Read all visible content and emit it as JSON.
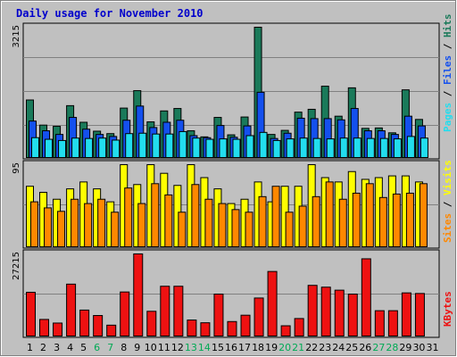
{
  "chart_data": {
    "type": "bar",
    "title": "Daily usage for November 2010",
    "days": [
      "1",
      "2",
      "3",
      "4",
      "5",
      "6",
      "7",
      "8",
      "9",
      "10",
      "11",
      "12",
      "13",
      "14",
      "15",
      "16",
      "17",
      "18",
      "19",
      "20",
      "21",
      "22",
      "23",
      "24",
      "25",
      "26",
      "27",
      "28",
      "29",
      "30",
      "31"
    ],
    "weekend_days": [
      "6",
      "7",
      "13",
      "14",
      "20",
      "21",
      "27",
      "28"
    ],
    "panels": [
      {
        "name": "top",
        "max_label": "3215",
        "max": 3215,
        "axis_labels": [
          "Pages",
          "Files",
          "Hits"
        ],
        "series": [
          {
            "name": "Hits",
            "color": "#1a7a5a",
            "values": [
              1420,
              800,
              770,
              1280,
              870,
              650,
              590,
              1220,
              1650,
              880,
              1150,
              1210,
              660,
              510,
              990,
              560,
              1000,
              3215,
              570,
              670,
              1120,
              1190,
              1760,
              1020,
              1720,
              720,
              730,
              610,
              1670,
              940,
              0
            ]
          },
          {
            "name": "Files",
            "color": "#1450ee",
            "values": [
              900,
              660,
              570,
              990,
              700,
              570,
              520,
              920,
              1270,
              740,
              870,
              920,
              540,
              490,
              790,
              500,
              780,
              1610,
              470,
              600,
              970,
              960,
              960,
              930,
              1210,
              660,
              660,
              570,
              1020,
              780,
              0
            ]
          },
          {
            "name": "Pages",
            "color": "#22ddee",
            "values": [
              490,
              450,
              420,
              480,
              470,
              480,
              430,
              590,
              600,
              580,
              580,
              640,
              480,
              450,
              460,
              450,
              540,
              620,
              420,
              460,
              480,
              470,
              460,
              480,
              480,
              470,
              470,
              460,
              520,
              480,
              0
            ]
          }
        ]
      },
      {
        "name": "middle",
        "max_label": "95",
        "max": 95,
        "axis_labels": [
          "Sites",
          "Visits"
        ],
        "series": [
          {
            "name": "Visits",
            "color": "#ffff00",
            "values": [
              70,
              63,
              55,
              67,
              75,
              67,
              52,
              95,
              72,
              95,
              85,
              71,
              95,
              80,
              67,
              50,
              55,
              75,
              52,
              70,
              70,
              95,
              80,
              75,
              87,
              78,
              80,
              82,
              82,
              75,
              0
            ]
          },
          {
            "name": "Sites",
            "color": "#ff8800",
            "values": [
              52,
              45,
              41,
              55,
              50,
              55,
              40,
              68,
              50,
              73,
              60,
              40,
              72,
              55,
              50,
              43,
              40,
              58,
              70,
              40,
              47,
              58,
              75,
              55,
              62,
              73,
              57,
              61,
              62,
              73,
              0
            ]
          }
        ]
      },
      {
        "name": "bottom",
        "max_label": "27215",
        "max": 27215,
        "axis_labels": [
          "KBytes"
        ],
        "series": [
          {
            "name": "KBytes",
            "color": "#ee1111",
            "values": [
              14500,
              5500,
              4300,
              17200,
              8600,
              6800,
              3600,
              14600,
              27215,
              8200,
              16500,
              16500,
              5300,
              4400,
              13900,
              4800,
              6900,
              12600,
              21400,
              3400,
              5800,
              16800,
              16200,
              15200,
              13900,
              25600,
              8400,
              8400,
              14300,
              14100,
              0
            ]
          }
        ]
      }
    ],
    "grid": true,
    "legend_position": "right-vertical"
  }
}
